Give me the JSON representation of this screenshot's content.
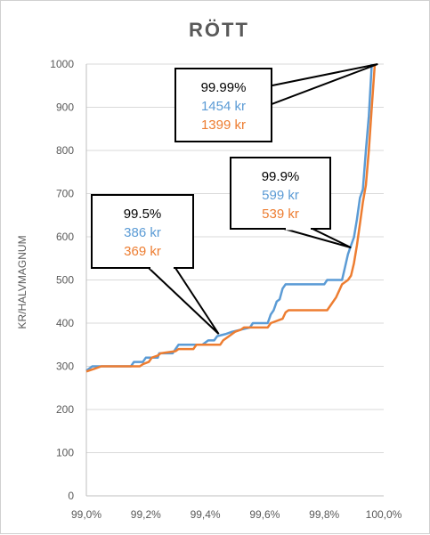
{
  "chart_data": {
    "type": "line",
    "title": "RÖTT",
    "xlabel": "",
    "ylabel": "KR/HALVMAGNUM",
    "xlim": [
      99.0,
      100.0
    ],
    "ylim": [
      0,
      1000
    ],
    "grid": "horizontal",
    "x_ticks": [
      "99,0%",
      "99,2%",
      "99,4%",
      "99,6%",
      "99,8%",
      "100,0%"
    ],
    "y_ticks": [
      "0",
      "100",
      "200",
      "300",
      "400",
      "500",
      "600",
      "700",
      "800",
      "900",
      "1000"
    ],
    "series": [
      {
        "color": "#5b9bd5",
        "points": [
          [
            99.0,
            290
          ],
          [
            99.02,
            300
          ],
          [
            99.15,
            300
          ],
          [
            99.16,
            310
          ],
          [
            99.19,
            310
          ],
          [
            99.2,
            320
          ],
          [
            99.24,
            320
          ],
          [
            99.245,
            330
          ],
          [
            99.29,
            330
          ],
          [
            99.3,
            340
          ],
          [
            99.31,
            350
          ],
          [
            99.39,
            350
          ],
          [
            99.41,
            360
          ],
          [
            99.43,
            360
          ],
          [
            99.44,
            370
          ],
          [
            99.47,
            375
          ],
          [
            99.49,
            380
          ],
          [
            99.52,
            385
          ],
          [
            99.55,
            390
          ],
          [
            99.56,
            400
          ],
          [
            99.61,
            400
          ],
          [
            99.62,
            420
          ],
          [
            99.63,
            430
          ],
          [
            99.64,
            450
          ],
          [
            99.65,
            455
          ],
          [
            99.66,
            480
          ],
          [
            99.67,
            490
          ],
          [
            99.8,
            490
          ],
          [
            99.81,
            500
          ],
          [
            99.86,
            500
          ],
          [
            99.87,
            530
          ],
          [
            99.88,
            560
          ],
          [
            99.89,
            580
          ],
          [
            99.9,
            599
          ],
          [
            99.91,
            640
          ],
          [
            99.92,
            690
          ],
          [
            99.93,
            710
          ],
          [
            99.94,
            800
          ],
          [
            99.95,
            880
          ],
          [
            99.96,
            1000
          ]
        ]
      },
      {
        "color": "#ed7d31",
        "points": [
          [
            99.0,
            288
          ],
          [
            99.03,
            295
          ],
          [
            99.05,
            300
          ],
          [
            99.18,
            300
          ],
          [
            99.19,
            305
          ],
          [
            99.21,
            310
          ],
          [
            99.22,
            320
          ],
          [
            99.24,
            325
          ],
          [
            99.25,
            330
          ],
          [
            99.3,
            335
          ],
          [
            99.31,
            340
          ],
          [
            99.36,
            340
          ],
          [
            99.37,
            350
          ],
          [
            99.45,
            350
          ],
          [
            99.46,
            360
          ],
          [
            99.48,
            370
          ],
          [
            99.5,
            380
          ],
          [
            99.52,
            385
          ],
          [
            99.53,
            390
          ],
          [
            99.61,
            390
          ],
          [
            99.62,
            400
          ],
          [
            99.66,
            410
          ],
          [
            99.67,
            425
          ],
          [
            99.68,
            430
          ],
          [
            99.81,
            430
          ],
          [
            99.82,
            440
          ],
          [
            99.84,
            460
          ],
          [
            99.86,
            490
          ],
          [
            99.88,
            500
          ],
          [
            99.89,
            510
          ],
          [
            99.9,
            539
          ],
          [
            99.91,
            580
          ],
          [
            99.92,
            630
          ],
          [
            99.93,
            680
          ],
          [
            99.94,
            720
          ],
          [
            99.95,
            800
          ],
          [
            99.96,
            900
          ],
          [
            99.97,
            1000
          ]
        ]
      }
    ],
    "annotations": [
      {
        "pct": "99.99%",
        "blue_value": "1454 kr",
        "orange_value": "1399 kr",
        "pointer_to": [
          99.98,
          1000
        ]
      },
      {
        "pct": "99.9%",
        "blue_value": "599 kr",
        "orange_value": "539 kr",
        "pointer_to": [
          99.89,
          575
        ]
      },
      {
        "pct": "99.5%",
        "blue_value": "386 kr",
        "orange_value": "369 kr",
        "pointer_to": [
          99.445,
          375
        ]
      }
    ]
  }
}
